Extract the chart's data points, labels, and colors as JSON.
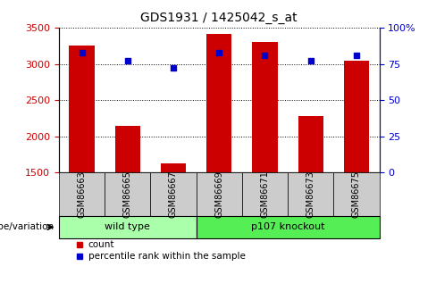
{
  "title": "GDS1931 / 1425042_s_at",
  "samples": [
    "GSM86663",
    "GSM86665",
    "GSM86667",
    "GSM86669",
    "GSM86671",
    "GSM86673",
    "GSM86675"
  ],
  "counts": [
    3250,
    2150,
    1620,
    3420,
    3300,
    2280,
    3050
  ],
  "percentiles": [
    83,
    77,
    72,
    83,
    81,
    77,
    81
  ],
  "ylim_left": [
    1500,
    3500
  ],
  "ylim_right": [
    0,
    100
  ],
  "yticks_left": [
    1500,
    2000,
    2500,
    3000,
    3500
  ],
  "yticks_right": [
    0,
    25,
    50,
    75,
    100
  ],
  "yticklabels_right": [
    "0",
    "25",
    "50",
    "75",
    "100%"
  ],
  "bar_color": "#cc0000",
  "dot_color": "#0000cc",
  "bar_width": 0.55,
  "groups": [
    {
      "label": "wild type",
      "indices": [
        0,
        1,
        2
      ],
      "color": "#aaffaa"
    },
    {
      "label": "p107 knockout",
      "indices": [
        3,
        4,
        5,
        6
      ],
      "color": "#55ee55"
    }
  ],
  "group_label": "genotype/variation",
  "legend_count_label": "count",
  "legend_percentile_label": "percentile rank within the sample",
  "background_color": "#ffffff",
  "tick_box_color": "#cccccc",
  "left_tick_color": "#cc0000",
  "right_tick_color": "#0000cc"
}
